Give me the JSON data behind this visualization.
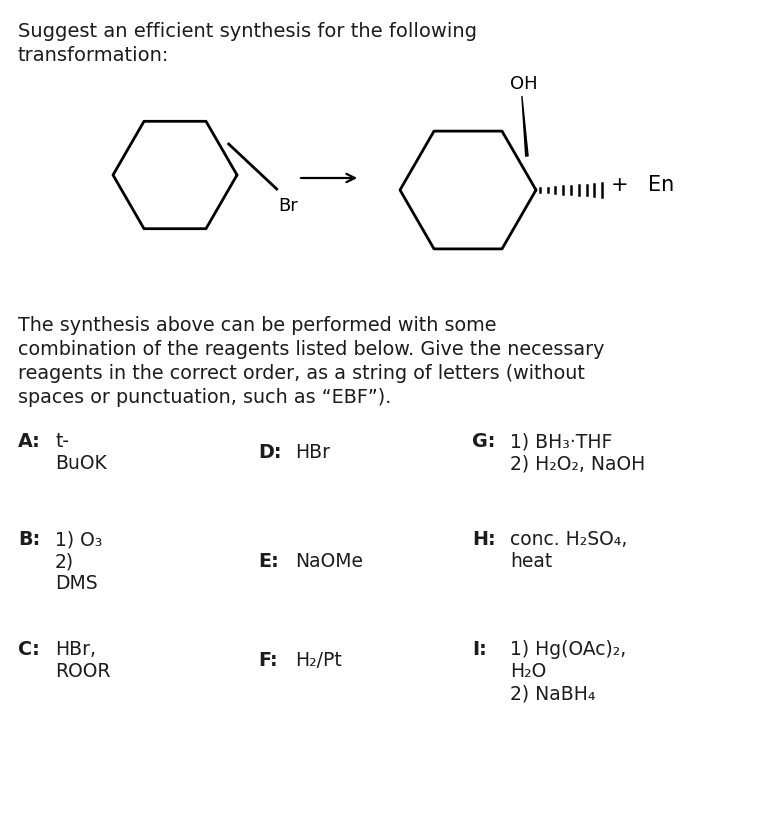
{
  "title_line1": "Suggest an efficient synthesis for the following",
  "title_line2": "transformation:",
  "body_text_lines": [
    "The synthesis above can be performed with some",
    "combination of the reagents listed below. Give the necessary",
    "reagents in the correct order, as a string of letters (without",
    "spaces or punctuation, such as “EBF”)."
  ],
  "bg_color": "#ffffff",
  "text_color": "#1c1c1c",
  "struct_color": "#000000",
  "font_size_title": 14.0,
  "font_size_body": 13.8,
  "font_size_reagent_label": 13.8,
  "font_size_reagent_text": 13.5
}
